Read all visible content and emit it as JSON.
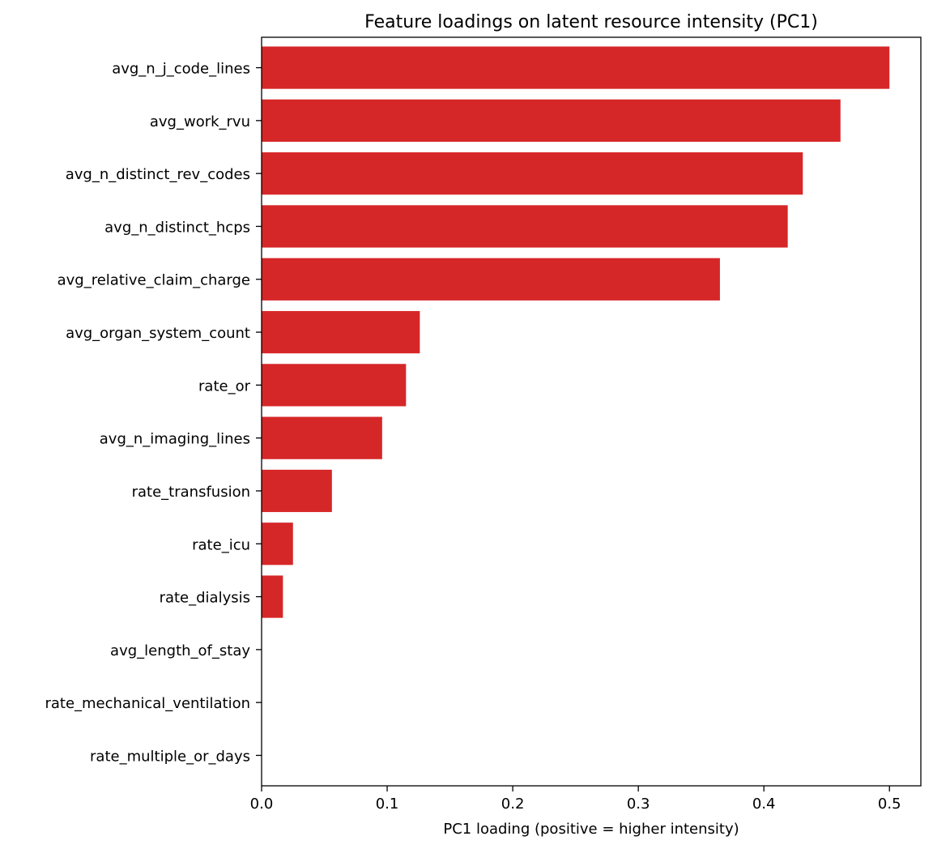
{
  "chart_data": {
    "type": "bar",
    "orientation": "horizontal",
    "title": "Feature loadings on latent resource intensity (PC1)",
    "xlabel": "PC1 loading (positive = higher intensity)",
    "ylabel": "",
    "xlim": [
      0,
      0.525
    ],
    "xticks": [
      0.0,
      0.1,
      0.2,
      0.3,
      0.4,
      0.5
    ],
    "xtick_labels": [
      "0.0",
      "0.1",
      "0.2",
      "0.3",
      "0.4",
      "0.5"
    ],
    "grid": false,
    "bar_color": "#d62728",
    "categories": [
      "avg_n_j_code_lines",
      "avg_work_rvu",
      "avg_n_distinct_rev_codes",
      "avg_n_distinct_hcps",
      "avg_relative_claim_charge",
      "avg_organ_system_count",
      "rate_or",
      "avg_n_imaging_lines",
      "rate_transfusion",
      "rate_icu",
      "rate_dialysis",
      "avg_length_of_stay",
      "rate_mechanical_ventilation",
      "rate_multiple_or_days"
    ],
    "values": [
      0.5,
      0.461,
      0.431,
      0.419,
      0.365,
      0.126,
      0.115,
      0.096,
      0.056,
      0.025,
      0.017,
      0.0,
      0.0,
      0.0
    ]
  }
}
